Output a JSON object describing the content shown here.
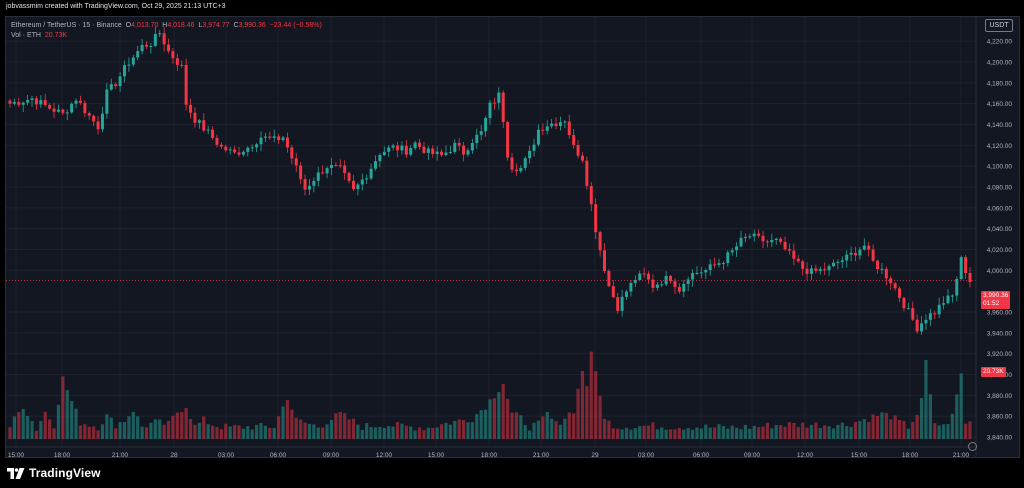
{
  "header": {
    "credit": "jobvassmim created with TradingView.com, Oct 29, 2025 21:13 UTC+3"
  },
  "legend": {
    "symbol": "Ethereum / TetherUS · 15 · Binance",
    "open_label": "O",
    "open": "4,013.70",
    "high_label": "H",
    "high": "4,018.46",
    "low_label": "L",
    "low": "3,974.77",
    "close_label": "C",
    "close": "3,990.36",
    "change": "−23.44 (−0.58%)",
    "vol_label": "Vol · ETH",
    "vol_value": "20.73K"
  },
  "currency": "USDT",
  "price_tag": {
    "price": "3,990.36",
    "countdown": "01:52"
  },
  "volume_tag": "20.73K",
  "footer": {
    "brand": "TradingView"
  },
  "colors": {
    "up": "#26a69a",
    "down": "#f23645",
    "background": "#131722",
    "grid": "#1e222d"
  },
  "chart_data": {
    "type": "candlestick",
    "y_axis_ticks": [
      "4,220.00",
      "4,200.00",
      "4,180.00",
      "4,160.00",
      "4,140.00",
      "4,120.00",
      "4,100.00",
      "4,080.00",
      "4,060.00",
      "4,040.00",
      "4,020.00",
      "4,000.00",
      "3,960.00",
      "3,940.00",
      "3,920.00",
      "3,900.00",
      "3,880.00",
      "3,860.00",
      "3,840.00"
    ],
    "y_axis_values": [
      4220,
      4200,
      4180,
      4160,
      4140,
      4120,
      4100,
      4080,
      4060,
      4040,
      4020,
      4000,
      3960,
      3940,
      3920,
      3900,
      3880,
      3860,
      3840
    ],
    "ylim": [
      3838,
      4230
    ],
    "x_axis_ticks": [
      "15:00",
      "18:00",
      "21:00",
      "28",
      "03:00",
      "06:00",
      "09:00",
      "12:00",
      "15:00",
      "18:00",
      "21:00",
      "29",
      "03:00",
      "06:00",
      "09:00",
      "12:00",
      "15:00",
      "18:00",
      "21:00"
    ],
    "close_path": [
      [
        0,
        4160
      ],
      [
        5,
        4165
      ],
      [
        8,
        4158
      ],
      [
        12,
        4150
      ],
      [
        15,
        4165
      ],
      [
        18,
        4148
      ],
      [
        20,
        4138
      ],
      [
        22,
        4170
      ],
      [
        24,
        4180
      ],
      [
        27,
        4200
      ],
      [
        30,
        4215
      ],
      [
        32,
        4218
      ],
      [
        34,
        4228
      ],
      [
        36,
        4210
      ],
      [
        37,
        4205
      ],
      [
        39,
        4195
      ],
      [
        40,
        4160
      ],
      [
        42,
        4145
      ],
      [
        45,
        4132
      ],
      [
        48,
        4118
      ],
      [
        51,
        4112
      ],
      [
        54,
        4118
      ],
      [
        57,
        4128
      ],
      [
        60,
        4125
      ],
      [
        62,
        4128
      ],
      [
        64,
        4108
      ],
      [
        67,
        4078
      ],
      [
        69,
        4088
      ],
      [
        72,
        4100
      ],
      [
        75,
        4097
      ],
      [
        78,
        4076
      ],
      [
        81,
        4092
      ],
      [
        84,
        4113
      ],
      [
        87,
        4118
      ],
      [
        90,
        4115
      ],
      [
        92,
        4122
      ],
      [
        95,
        4113
      ],
      [
        98,
        4110
      ],
      [
        101,
        4120
      ],
      [
        103,
        4113
      ],
      [
        105,
        4125
      ],
      [
        107,
        4132
      ],
      [
        109,
        4158
      ],
      [
        111,
        4168
      ],
      [
        112,
        4145
      ],
      [
        113,
        4112
      ],
      [
        114,
        4100
      ],
      [
        116,
        4098
      ],
      [
        118,
        4112
      ],
      [
        120,
        4135
      ],
      [
        122,
        4140
      ],
      [
        124,
        4142
      ],
      [
        126,
        4145
      ],
      [
        128,
        4118
      ],
      [
        130,
        4108
      ],
      [
        131,
        4085
      ],
      [
        133,
        4040
      ],
      [
        134,
        4020
      ],
      [
        136,
        3985
      ],
      [
        138,
        3965
      ],
      [
        140,
        3980
      ],
      [
        142,
        3992
      ],
      [
        144,
        3995
      ],
      [
        146,
        3985
      ],
      [
        148,
        3990
      ],
      [
        150,
        3993
      ],
      [
        152,
        3982
      ],
      [
        154,
        3995
      ],
      [
        156,
        3998
      ],
      [
        158,
        4000
      ],
      [
        160,
        4005
      ],
      [
        162,
        4010
      ],
      [
        164,
        4018
      ],
      [
        166,
        4028
      ],
      [
        168,
        4033
      ],
      [
        170,
        4030
      ],
      [
        172,
        4027
      ],
      [
        174,
        4028
      ],
      [
        176,
        4020
      ],
      [
        178,
        4010
      ],
      [
        180,
        4002
      ],
      [
        182,
        3998
      ],
      [
        184,
        4000
      ],
      [
        186,
        4002
      ],
      [
        188,
        4008
      ],
      [
        190,
        4012
      ],
      [
        192,
        4018
      ],
      [
        194,
        4024
      ],
      [
        196,
        4008
      ],
      [
        198,
        4000
      ],
      [
        200,
        3990
      ],
      [
        202,
        3975
      ],
      [
        204,
        3960
      ],
      [
        206,
        3945
      ],
      [
        208,
        3955
      ],
      [
        210,
        3960
      ],
      [
        212,
        3970
      ],
      [
        214,
        3975
      ],
      [
        216,
        4010
      ],
      [
        218,
        3990
      ]
    ],
    "volume_profile": [
      [
        0,
        20
      ],
      [
        3,
        70
      ],
      [
        6,
        15
      ],
      [
        8,
        55
      ],
      [
        10,
        25
      ],
      [
        12,
        135
      ],
      [
        14,
        80
      ],
      [
        16,
        30
      ],
      [
        20,
        20
      ],
      [
        22,
        45
      ],
      [
        24,
        25
      ],
      [
        26,
        35
      ],
      [
        28,
        60
      ],
      [
        30,
        20
      ],
      [
        33,
        30
      ],
      [
        36,
        25
      ],
      [
        38,
        55
      ],
      [
        40,
        70
      ],
      [
        42,
        20
      ],
      [
        44,
        35
      ],
      [
        46,
        25
      ],
      [
        48,
        20
      ],
      [
        50,
        18
      ],
      [
        55,
        20
      ],
      [
        60,
        20
      ],
      [
        63,
        90
      ],
      [
        65,
        35
      ],
      [
        70,
        20
      ],
      [
        75,
        50
      ],
      [
        80,
        20
      ],
      [
        85,
        25
      ],
      [
        90,
        20
      ],
      [
        95,
        18
      ],
      [
        100,
        30
      ],
      [
        105,
        40
      ],
      [
        108,
        70
      ],
      [
        110,
        95
      ],
      [
        112,
        125
      ],
      [
        114,
        50
      ],
      [
        116,
        40
      ],
      [
        118,
        20
      ],
      [
        120,
        25
      ],
      [
        122,
        50
      ],
      [
        124,
        25
      ],
      [
        128,
        60
      ],
      [
        130,
        155
      ],
      [
        131,
        120
      ],
      [
        132,
        190
      ],
      [
        133,
        150
      ],
      [
        134,
        100
      ],
      [
        135,
        35
      ],
      [
        138,
        20
      ],
      [
        145,
        22
      ],
      [
        150,
        20
      ],
      [
        155,
        20
      ],
      [
        160,
        18
      ],
      [
        165,
        18
      ],
      [
        170,
        20
      ],
      [
        175,
        25
      ],
      [
        180,
        25
      ],
      [
        185,
        25
      ],
      [
        190,
        25
      ],
      [
        195,
        40
      ],
      [
        198,
        50
      ],
      [
        200,
        45
      ],
      [
        202,
        30
      ],
      [
        204,
        20
      ],
      [
        206,
        50
      ],
      [
        207,
        80
      ],
      [
        208,
        175
      ],
      [
        209,
        90
      ],
      [
        210,
        30
      ],
      [
        212,
        20
      ],
      [
        214,
        45
      ],
      [
        216,
        145
      ],
      [
        217,
        30
      ]
    ]
  }
}
